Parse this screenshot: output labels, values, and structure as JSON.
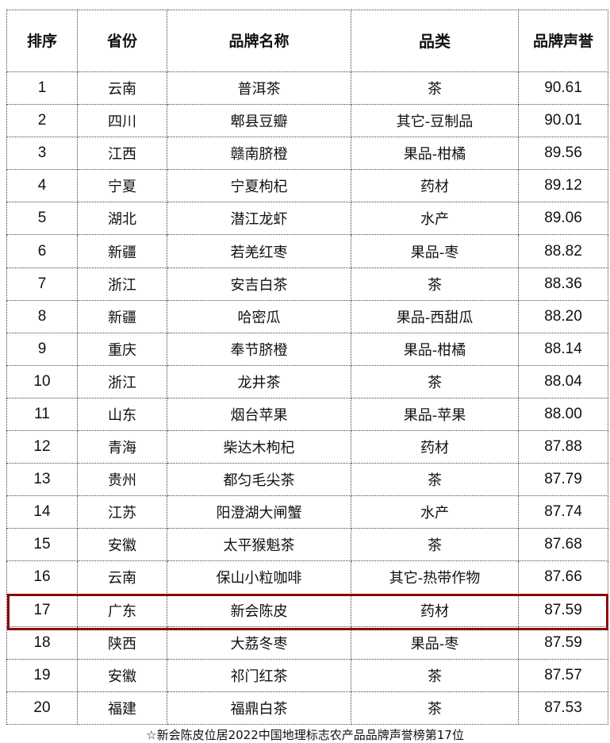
{
  "headers": [
    "排序",
    "省份",
    "品牌名称",
    "品类",
    "品牌声誉"
  ],
  "rows": [
    [
      "1",
      "云南",
      "普洱茶",
      "茶",
      "90.61"
    ],
    [
      "2",
      "四川",
      "郫县豆瓣",
      "其它-豆制品",
      "90.01"
    ],
    [
      "3",
      "江西",
      "赣南脐橙",
      "果品-柑橘",
      "89.56"
    ],
    [
      "4",
      "宁夏",
      "宁夏枸杞",
      "药材",
      "89.12"
    ],
    [
      "5",
      "湖北",
      "潜江龙虾",
      "水产",
      "89.06"
    ],
    [
      "6",
      "新疆",
      "若羌红枣",
      "果品-枣",
      "88.82"
    ],
    [
      "7",
      "浙江",
      "安吉白茶",
      "茶",
      "88.36"
    ],
    [
      "8",
      "新疆",
      "哈密瓜",
      "果品-西甜瓜",
      "88.20"
    ],
    [
      "9",
      "重庆",
      "奉节脐橙",
      "果品-柑橘",
      "88.14"
    ],
    [
      "10",
      "浙江",
      "龙井茶",
      "茶",
      "88.04"
    ],
    [
      "11",
      "山东",
      "烟台苹果",
      "果品-苹果",
      "88.00"
    ],
    [
      "12",
      "青海",
      "柴达木枸杞",
      "药材",
      "87.88"
    ],
    [
      "13",
      "贵州",
      "都匀毛尖茶",
      "茶",
      "87.79"
    ],
    [
      "14",
      "江苏",
      "阳澄湖大闸蟹",
      "水产",
      "87.74"
    ],
    [
      "15",
      "安徽",
      "太平猴魁茶",
      "茶",
      "87.68"
    ],
    [
      "16",
      "云南",
      "保山小粒咖啡",
      "其它-热带作物",
      "87.66"
    ],
    [
      "17",
      "广东",
      "新会陈皮",
      "药材",
      "87.59"
    ],
    [
      "18",
      "陕西",
      "大荔冬枣",
      "果品-枣",
      "87.59"
    ],
    [
      "19",
      "安徽",
      "祁门红茶",
      "茶",
      "87.57"
    ],
    [
      "20",
      "福建",
      "福鼎白茶",
      "茶",
      "87.53"
    ]
  ],
  "highlight_rank": "17",
  "highlight_color": "#8b0a0a",
  "footnote": "☆新会陈皮位居2022中国地理标志农产品品牌声誉榜第17位"
}
